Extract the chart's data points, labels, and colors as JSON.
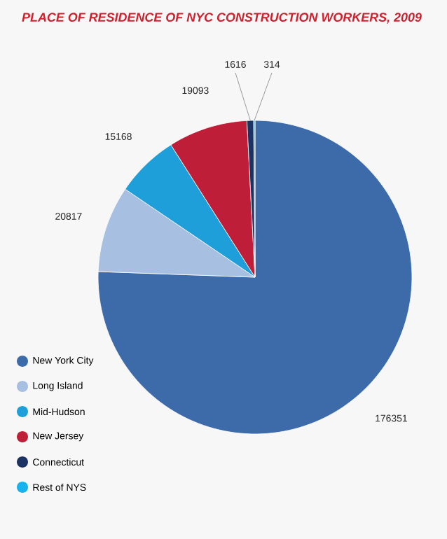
{
  "chart_data": {
    "type": "pie",
    "title": "PLACE OF RESIDENCE OF NYC CONSTRUCTION WORKERS, 2009",
    "categories": [
      "New York City",
      "Long Island",
      "Mid-Hudson",
      "New Jersey",
      "Connecticut",
      "Rest of NYS"
    ],
    "values": [
      176351,
      20817,
      15168,
      19093,
      1616,
      314
    ],
    "colors": [
      "#3d6ba9",
      "#a7bfe0",
      "#1e9fd9",
      "#bf1e38",
      "#1b3262",
      "#18b2ee"
    ],
    "data_labels": true,
    "legend": "bottom left"
  }
}
